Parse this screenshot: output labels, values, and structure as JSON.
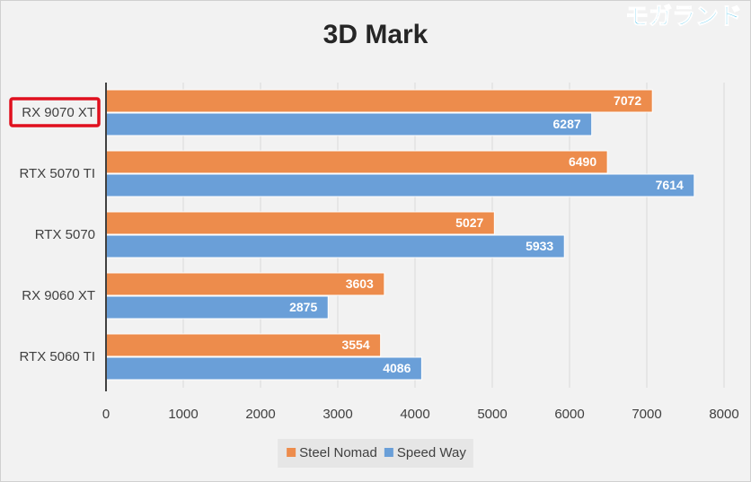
{
  "chart_data": {
    "type": "bar",
    "orientation": "horizontal",
    "title": "3D Mark",
    "watermark": "モガランド",
    "categories": [
      "RX 9070 XT",
      "RTX 5070 TI",
      "RTX 5070",
      "RX 9060 XT",
      "RTX 5060 TI"
    ],
    "series": [
      {
        "name": "Steel Nomad",
        "color": "#ed8c4c",
        "values": [
          7072,
          6490,
          5027,
          3603,
          3554
        ]
      },
      {
        "name": "Speed Way",
        "color": "#6a9fd8",
        "values": [
          6287,
          7614,
          5933,
          2875,
          4086
        ]
      }
    ],
    "xlim": [
      0,
      8000
    ],
    "xticks": [
      0,
      1000,
      2000,
      3000,
      4000,
      5000,
      6000,
      7000,
      8000
    ],
    "grid": true,
    "legend": "bottom"
  }
}
